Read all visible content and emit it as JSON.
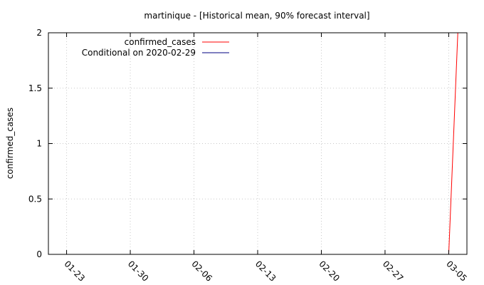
{
  "chart_data": {
    "type": "line",
    "title": "martinique -  [Historical mean, 90% forecast interval]",
    "xlabel": "",
    "ylabel": "confirmed_cases",
    "x_tick_labels": [
      "01-23",
      "01-30",
      "02-06",
      "02-13",
      "02-20",
      "02-27",
      "03-05"
    ],
    "x_tick_dates": [
      "2020-01-23",
      "2020-01-30",
      "2020-02-06",
      "2020-02-13",
      "2020-02-20",
      "2020-02-27",
      "2020-03-05"
    ],
    "xlim": [
      "2020-01-21",
      "2020-03-07"
    ],
    "ylim": [
      0,
      2
    ],
    "y_ticks": [
      0,
      0.5,
      1,
      1.5,
      2
    ],
    "y_tick_labels": [
      "0",
      "0.5",
      "1",
      "1.5",
      "2"
    ],
    "grid": true,
    "legend_position": "top-left",
    "series": [
      {
        "name": "confirmed_cases",
        "color": "#ff0000",
        "points": [
          {
            "x": "2020-03-05",
            "y": 0
          },
          {
            "x": "2020-03-06",
            "y": 2
          }
        ]
      },
      {
        "name": "Conditional on 2020-02-29",
        "color": "#000080",
        "points": []
      }
    ]
  }
}
